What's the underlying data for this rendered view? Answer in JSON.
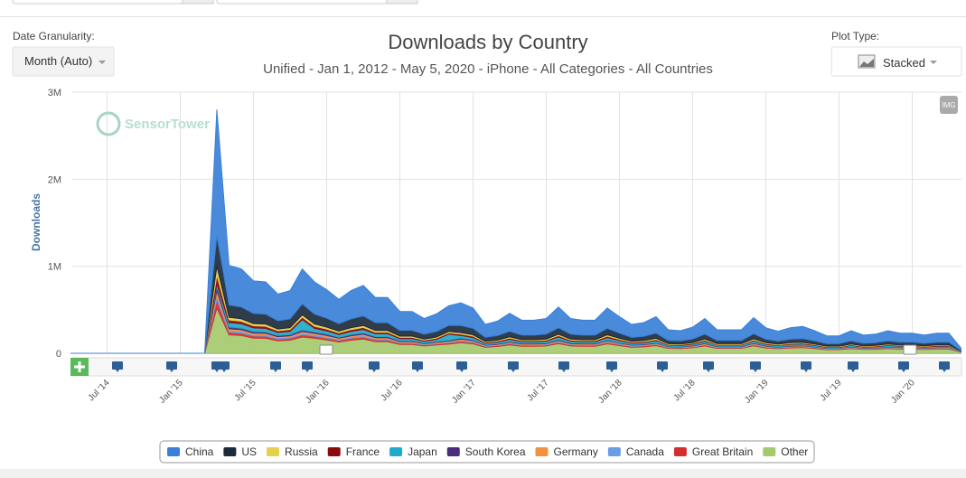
{
  "controls": {
    "granularity_label": "Date Granularity:",
    "granularity_value": "Month (Auto)",
    "plot_type_label": "Plot Type:",
    "plot_type_value": "Stacked",
    "export_button": "IMG"
  },
  "watermark": "SensorTower",
  "chart_data": {
    "type": "stacked-area",
    "title": "Downloads by Country",
    "subtitle": "Unified - Jan 1, 2012 - May 5, 2020 - iPhone - All Categories - All Countries",
    "y_label": "Downloads",
    "ylim": [
      0,
      3000000
    ],
    "yticks": [
      0,
      {
        "value": 1000000,
        "label": "1M"
      },
      {
        "value": 2000000,
        "label": "2M"
      },
      {
        "value": 3000000,
        "label": "3M"
      }
    ],
    "grid": true,
    "legend": "bottom",
    "categories": [
      null,
      null,
      null,
      "Jul '14",
      null,
      null,
      null,
      null,
      null,
      "Jan '15",
      null,
      null,
      null,
      null,
      null,
      "Jul '15",
      null,
      null,
      null,
      null,
      null,
      "Jan '16",
      null,
      null,
      null,
      null,
      null,
      "Jul '16",
      null,
      null,
      null,
      null,
      null,
      "Jan '17",
      null,
      null,
      null,
      null,
      null,
      "Jul '17",
      null,
      null,
      null,
      null,
      null,
      "Jan '18",
      null,
      null,
      null,
      null,
      null,
      "Jul '18",
      null,
      null,
      null,
      null,
      null,
      "Jan '19",
      null,
      null,
      null,
      null,
      null,
      "Jul '19",
      null,
      null,
      null,
      null,
      null,
      "Jan '20",
      null,
      null,
      null,
      null
    ],
    "series": [
      {
        "name": "China",
        "color": "#3a80d8",
        "values": [
          0,
          0,
          0,
          0,
          0,
          0,
          0,
          0,
          0,
          0,
          0,
          0,
          1450000,
          455000,
          437000,
          374000,
          369000,
          306000,
          324000,
          401000,
          369000,
          329000,
          279000,
          324000,
          351000,
          288000,
          288000,
          216000,
          216000,
          180000,
          203000,
          225000,
          261000,
          234000,
          149000,
          167000,
          207000,
          171000,
          171000,
          180000,
          239000,
          180000,
          171000,
          171000,
          234000,
          189000,
          149000,
          158000,
          189000,
          122000,
          117000,
          135000,
          180000,
          122000,
          122000,
          122000,
          185000,
          131000,
          113000,
          131000,
          140000,
          117000,
          90000,
          90000,
          117000,
          95000,
          99000,
          117000,
          104000,
          104000,
          95000,
          104000,
          104000,
          27000
        ]
      },
      {
        "name": "US",
        "color": "#1c2b3c",
        "values": [
          0,
          0,
          0,
          0,
          0,
          0,
          0,
          0,
          0,
          0,
          0,
          0,
          350000,
          141000,
          136000,
          116000,
          115000,
          95000,
          101000,
          125000,
          115000,
          102000,
          87000,
          101000,
          109000,
          90000,
          90000,
          67000,
          67000,
          56000,
          63000,
          70000,
          81000,
          73000,
          46000,
          52000,
          64000,
          53000,
          53000,
          56000,
          74000,
          56000,
          53000,
          53000,
          73000,
          59000,
          46000,
          49000,
          59000,
          38000,
          36000,
          42000,
          56000,
          38000,
          38000,
          38000,
          57000,
          41000,
          35000,
          41000,
          43000,
          36000,
          28000,
          28000,
          36000,
          29000,
          31000,
          36000,
          32000,
          32000,
          29000,
          32000,
          32000,
          8000
        ]
      },
      {
        "name": "Russia",
        "color": "#e6d04c",
        "values": [
          0,
          0,
          0,
          0,
          0,
          0,
          0,
          0,
          0,
          0,
          0,
          0,
          100000,
          30000,
          29000,
          25000,
          25000,
          20000,
          22000,
          27000,
          25000,
          22000,
          19000,
          22000,
          23000,
          19000,
          19000,
          14000,
          14000,
          12000,
          14000,
          15000,
          17000,
          16000,
          10000,
          11000,
          14000,
          11000,
          11000,
          12000,
          16000,
          12000,
          11000,
          11000,
          16000,
          13000,
          10000,
          11000,
          13000,
          8000,
          8000,
          9000,
          12000,
          8000,
          8000,
          8000,
          12000,
          9000,
          8000,
          9000,
          9000,
          8000,
          6000,
          6000,
          8000,
          6000,
          7000,
          8000,
          7000,
          7000,
          6000,
          7000,
          7000,
          2000
        ]
      },
      {
        "name": "France",
        "color": "#8e0b0b",
        "values": [
          0,
          0,
          0,
          0,
          0,
          0,
          0,
          0,
          0,
          0,
          0,
          0,
          100000,
          30000,
          29000,
          25000,
          25000,
          20000,
          22000,
          27000,
          25000,
          22000,
          19000,
          22000,
          23000,
          19000,
          19000,
          14000,
          14000,
          12000,
          14000,
          15000,
          17000,
          16000,
          10000,
          11000,
          14000,
          11000,
          11000,
          12000,
          16000,
          12000,
          11000,
          11000,
          16000,
          13000,
          10000,
          11000,
          13000,
          8000,
          8000,
          9000,
          12000,
          8000,
          8000,
          8000,
          12000,
          9000,
          8000,
          9000,
          9000,
          8000,
          6000,
          6000,
          8000,
          6000,
          7000,
          8000,
          7000,
          7000,
          6000,
          7000,
          7000,
          2000
        ]
      },
      {
        "name": "Japan",
        "color": "#1eaacb",
        "values": [
          0,
          0,
          0,
          0,
          0,
          0,
          0,
          0,
          0,
          0,
          0,
          0,
          30000,
          51000,
          49000,
          42000,
          41000,
          34000,
          36000,
          120000,
          41000,
          37000,
          31000,
          36000,
          39000,
          32000,
          32000,
          24000,
          24000,
          20000,
          23000,
          70000,
          29000,
          26000,
          17000,
          19000,
          23000,
          19000,
          19000,
          20000,
          27000,
          20000,
          19000,
          19000,
          26000,
          21000,
          17000,
          18000,
          21000,
          14000,
          13000,
          15000,
          20000,
          14000,
          14000,
          14000,
          21000,
          15000,
          13000,
          15000,
          16000,
          13000,
          10000,
          10000,
          13000,
          11000,
          11000,
          13000,
          12000,
          12000,
          11000,
          12000,
          12000,
          3000
        ]
      },
      {
        "name": "South Korea",
        "color": "#4b2b7c",
        "values": [
          0,
          0,
          0,
          0,
          0,
          0,
          0,
          0,
          0,
          0,
          0,
          0,
          50000,
          20000,
          19000,
          17000,
          16000,
          14000,
          14000,
          18000,
          16000,
          15000,
          12000,
          14000,
          16000,
          13000,
          13000,
          10000,
          10000,
          8000,
          9000,
          10000,
          12000,
          10000,
          7000,
          7000,
          9000,
          8000,
          8000,
          8000,
          11000,
          8000,
          8000,
          8000,
          10000,
          8000,
          7000,
          7000,
          8000,
          5000,
          5000,
          6000,
          8000,
          5000,
          5000,
          5000,
          8000,
          6000,
          5000,
          6000,
          6000,
          5000,
          4000,
          4000,
          5000,
          4000,
          4000,
          5000,
          5000,
          5000,
          4000,
          5000,
          5000,
          1000
        ]
      },
      {
        "name": "Germany",
        "color": "#f2923e",
        "values": [
          0,
          0,
          0,
          0,
          0,
          0,
          0,
          0,
          0,
          0,
          0,
          0,
          50000,
          20000,
          19000,
          17000,
          16000,
          14000,
          14000,
          18000,
          16000,
          15000,
          12000,
          14000,
          16000,
          13000,
          13000,
          10000,
          10000,
          8000,
          9000,
          10000,
          12000,
          10000,
          7000,
          7000,
          9000,
          8000,
          8000,
          8000,
          11000,
          8000,
          8000,
          8000,
          10000,
          8000,
          7000,
          7000,
          8000,
          5000,
          5000,
          6000,
          8000,
          5000,
          5000,
          5000,
          8000,
          6000,
          5000,
          6000,
          6000,
          5000,
          4000,
          4000,
          5000,
          4000,
          4000,
          5000,
          5000,
          5000,
          4000,
          5000,
          5000,
          1000
        ]
      },
      {
        "name": "Canada",
        "color": "#6c9ce2",
        "values": [
          0,
          0,
          0,
          0,
          0,
          0,
          0,
          0,
          0,
          0,
          0,
          0,
          50000,
          20000,
          19000,
          17000,
          16000,
          14000,
          14000,
          18000,
          16000,
          15000,
          12000,
          14000,
          16000,
          13000,
          13000,
          10000,
          10000,
          8000,
          9000,
          10000,
          12000,
          10000,
          7000,
          7000,
          9000,
          8000,
          8000,
          8000,
          11000,
          8000,
          8000,
          8000,
          10000,
          8000,
          7000,
          7000,
          8000,
          5000,
          5000,
          6000,
          8000,
          5000,
          5000,
          5000,
          8000,
          6000,
          5000,
          6000,
          6000,
          5000,
          4000,
          4000,
          5000,
          4000,
          4000,
          5000,
          5000,
          5000,
          4000,
          5000,
          5000,
          1000
        ]
      },
      {
        "name": "Great Britain",
        "color": "#d32f2f",
        "values": [
          0,
          0,
          0,
          0,
          0,
          0,
          0,
          0,
          0,
          0,
          0,
          0,
          100000,
          30000,
          29000,
          25000,
          25000,
          20000,
          22000,
          27000,
          25000,
          22000,
          19000,
          22000,
          23000,
          19000,
          19000,
          14000,
          14000,
          12000,
          14000,
          15000,
          17000,
          16000,
          10000,
          11000,
          14000,
          11000,
          11000,
          12000,
          16000,
          12000,
          11000,
          11000,
          16000,
          13000,
          10000,
          11000,
          13000,
          8000,
          8000,
          9000,
          12000,
          8000,
          8000,
          8000,
          12000,
          9000,
          8000,
          9000,
          9000,
          8000,
          6000,
          6000,
          8000,
          6000,
          7000,
          8000,
          7000,
          7000,
          6000,
          7000,
          7000,
          2000
        ]
      },
      {
        "name": "Other",
        "color": "#a5ca6c",
        "values": [
          0,
          0,
          0,
          0,
          0,
          0,
          0,
          0,
          0,
          0,
          0,
          0,
          520000,
          212000,
          204000,
          174000,
          172000,
          143000,
          151000,
          187000,
          172000,
          153000,
          130000,
          151000,
          164000,
          134000,
          134000,
          101000,
          101000,
          84000,
          95000,
          105000,
          122000,
          109000,
          69000,
          78000,
          97000,
          80000,
          80000,
          84000,
          111000,
          84000,
          80000,
          80000,
          109000,
          88000,
          69000,
          74000,
          88000,
          57000,
          55000,
          63000,
          84000,
          57000,
          57000,
          57000,
          86000,
          61000,
          53000,
          61000,
          65000,
          55000,
          42000,
          42000,
          55000,
          44000,
          46000,
          55000,
          48000,
          48000,
          44000,
          48000,
          48000,
          13000
        ]
      }
    ]
  }
}
